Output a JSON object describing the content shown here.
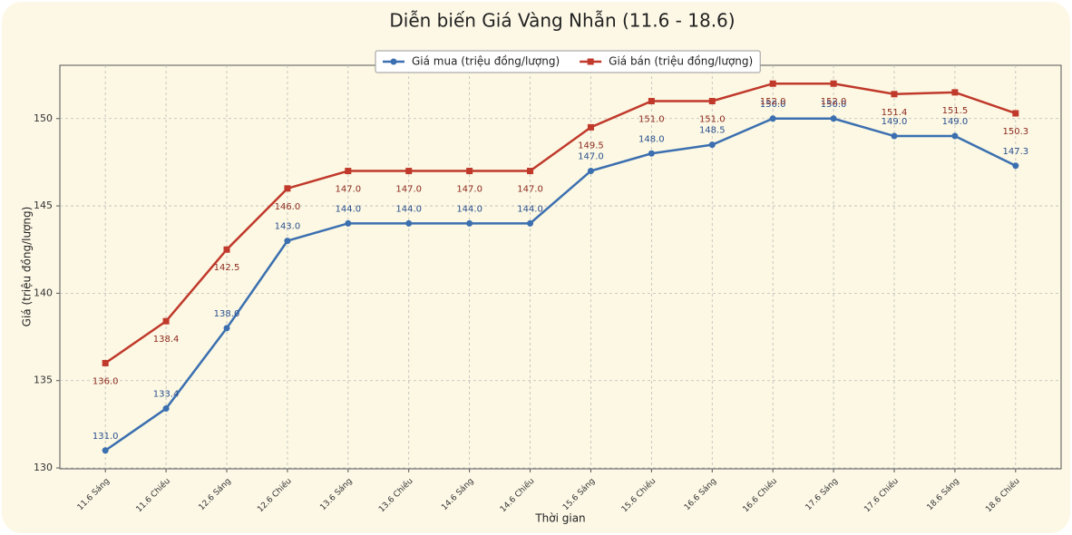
{
  "chart_data": {
    "type": "line",
    "title": "Diễn biến Giá Vàng Nhẫn (11.6 - 18.6)",
    "x_label": "Thời gian",
    "y_label": "Giá (triệu đồng/lượng)",
    "categories": [
      "11.6 Sáng",
      "11.6 Chiều",
      "12.6 Sáng",
      "12.6 Chiều",
      "13.6 Sáng",
      "13.6 Chiều",
      "14.6 Sáng",
      "14.6 Chiều",
      "15.6 Sáng",
      "15.6 Chiều",
      "16.6 Sáng",
      "16.6 Chiều",
      "17.6 Sáng",
      "17.6 Chiều",
      "18.6 Sáng",
      "18.6 Chiều"
    ],
    "series": [
      {
        "name": "Giá mua (triệu đồng/lượng)",
        "color": "#3b6fb0",
        "label_color": "#2a4f8f",
        "marker": "circle",
        "values": [
          131,
          133.4,
          138,
          143,
          144,
          144,
          144,
          144,
          147,
          148,
          148.5,
          150,
          150,
          149,
          149,
          147.3
        ],
        "value_labels": [
          "131.0",
          "133.4",
          "138.0",
          "143.0",
          "144.0",
          "144.0",
          "144.0",
          "144.0",
          "147.0",
          "148.0",
          "148.5",
          "150.0",
          "150.0",
          "149.0",
          "149.0",
          "147.3"
        ]
      },
      {
        "name": "Giá bán (triệu đồng/lượng)",
        "color": "#c0392b",
        "label_color": "#8e2a20",
        "marker": "square",
        "values": [
          136,
          138.4,
          142.5,
          146,
          147,
          147,
          147,
          147,
          149.5,
          151,
          151,
          152,
          152,
          151.4,
          151.5,
          150.3
        ],
        "value_labels": [
          "136.0",
          "138.4",
          "142.5",
          "146.0",
          "147.0",
          "147.0",
          "147.0",
          "147.0",
          "149.5",
          "151.0",
          "151.0",
          "152.0",
          "152.0",
          "151.4",
          "151.5",
          "150.3"
        ]
      }
    ],
    "ylim": [
      129.95,
      153.05
    ],
    "yticks": [
      130,
      135,
      140,
      145,
      150
    ],
    "grid": true,
    "legend": "upper center"
  }
}
